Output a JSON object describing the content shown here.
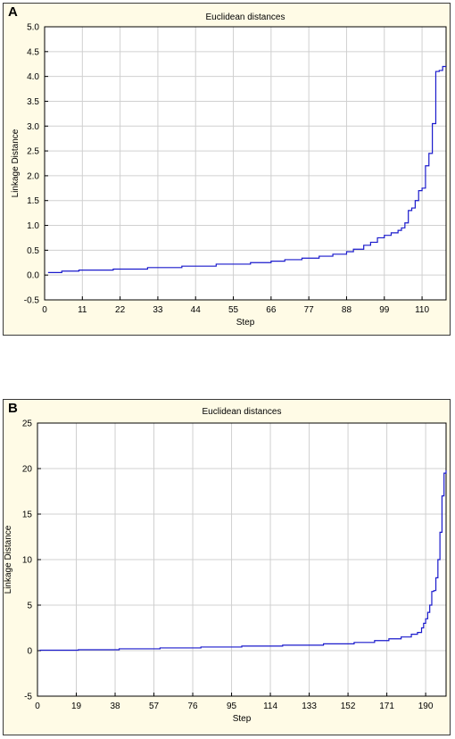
{
  "panels": [
    {
      "letter": "A"
    },
    {
      "letter": "B"
    }
  ],
  "chart_data": [
    {
      "type": "line",
      "title": "Euclidean distances",
      "xlabel": "Step",
      "ylabel": "Linkage Distance",
      "xlim": [
        0,
        117
      ],
      "ylim": [
        -0.5,
        5.0
      ],
      "xticks": [
        0,
        11,
        22,
        33,
        44,
        55,
        66,
        77,
        88,
        99,
        110
      ],
      "yticks": [
        -0.5,
        0.0,
        0.5,
        1.0,
        1.5,
        2.0,
        2.5,
        3.0,
        3.5,
        4.0,
        4.5,
        5.0
      ],
      "ytick_labels": [
        "-0.5",
        "0.0",
        "0.5",
        "1.0",
        "1.5",
        "2.0",
        "2.5",
        "3.0",
        "3.5",
        "4.0",
        "4.5",
        "5.0"
      ],
      "grid": true,
      "step": true,
      "color": "#1a1acc",
      "series": [
        {
          "x": [
            1,
            5,
            10,
            20,
            30,
            40,
            50,
            60,
            66,
            70,
            75,
            80,
            84,
            88,
            90,
            93,
            95,
            97,
            99,
            101,
            103,
            104,
            105,
            106,
            107,
            108,
            109,
            110,
            111,
            112,
            113,
            114,
            115,
            116,
            117
          ],
          "y": [
            0.05,
            0.08,
            0.1,
            0.12,
            0.15,
            0.18,
            0.22,
            0.25,
            0.28,
            0.31,
            0.34,
            0.38,
            0.42,
            0.47,
            0.52,
            0.6,
            0.66,
            0.75,
            0.8,
            0.85,
            0.9,
            0.95,
            1.05,
            1.3,
            1.35,
            1.5,
            1.7,
            1.75,
            2.2,
            2.45,
            3.05,
            4.1,
            4.12,
            4.2,
            4.2
          ]
        }
      ]
    },
    {
      "type": "line",
      "title": "Euclidean distances",
      "xlabel": "Step",
      "ylabel": "Linkage Distance",
      "xlim": [
        0,
        200
      ],
      "ylim": [
        -5,
        25
      ],
      "xticks": [
        0,
        19,
        38,
        57,
        76,
        95,
        114,
        133,
        152,
        171,
        190
      ],
      "yticks": [
        -5,
        0,
        5,
        10,
        15,
        20,
        25
      ],
      "ytick_labels": [
        "-5",
        "0",
        "5",
        "10",
        "15",
        "20",
        "25"
      ],
      "grid": true,
      "step": true,
      "color": "#1a1acc",
      "series": [
        {
          "x": [
            1,
            20,
            40,
            60,
            80,
            100,
            120,
            140,
            155,
            165,
            172,
            178,
            183,
            186,
            188,
            189,
            190,
            191,
            192,
            193,
            194,
            195,
            196,
            197,
            198,
            199,
            200
          ],
          "y": [
            0.05,
            0.1,
            0.2,
            0.3,
            0.4,
            0.5,
            0.6,
            0.75,
            0.9,
            1.1,
            1.3,
            1.5,
            1.8,
            2.0,
            2.5,
            3.0,
            3.5,
            4.2,
            5.0,
            6.5,
            6.6,
            8.0,
            10.0,
            13.0,
            17.0,
            19.5,
            19.8
          ]
        }
      ]
    }
  ]
}
